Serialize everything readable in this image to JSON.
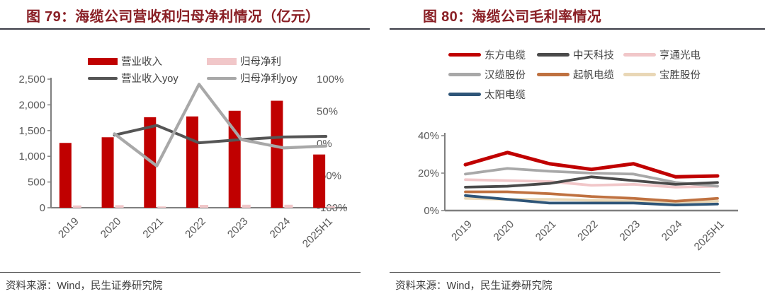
{
  "panels": [
    {
      "title": "图 79：海缆公司营收和归母净利情况（亿元）",
      "source": "资料来源：Wind，民生证券研究院"
    },
    {
      "title": "图 80：海缆公司毛利率情况",
      "source": "资料来源：Wind，民生证券研究院"
    }
  ],
  "colors": {
    "accent_red": "#c00000",
    "light_pink": "#f1c7c9",
    "dark_gray": "#4a4a4a",
    "mid_gray": "#a8a8a8",
    "orange": "#bf7140",
    "tan": "#e9d7b6",
    "steel_blue": "#2e5578",
    "title_red": "#8a2026",
    "title_rule": "#3b3c46",
    "axis_gray": "#7f7f7f",
    "tick_text": "#595959"
  },
  "chart_data": [
    {
      "type": "bar",
      "subtype": "combo-bar-line-dual-axis",
      "title": "图 79：海缆公司营收和归母净利情况（亿元）",
      "categories": [
        "2019",
        "2020",
        "2021",
        "2022",
        "2023",
        "2024",
        "2025H1"
      ],
      "left_axis": {
        "label_ticks": [
          "2,500",
          "2,000",
          "1,500",
          "1,000",
          "500",
          "0"
        ],
        "min": 0,
        "max": 2500
      },
      "right_axis": {
        "label_ticks": [
          "100%",
          "50%",
          "0%",
          "-50%",
          "-100%"
        ],
        "min": -100,
        "max": 100
      },
      "grid": false,
      "legend_position": "top-center",
      "bar_series": [
        {
          "name": "营业收入",
          "color": "#c00000",
          "values": [
            1260,
            1370,
            1760,
            1775,
            1885,
            2080,
            1035
          ]
        },
        {
          "name": "归母净利",
          "color": "#f1c7c9",
          "values": [
            45,
            50,
            25,
            55,
            58,
            58,
            28
          ]
        }
      ],
      "line_series": [
        {
          "name": "营业收入yoy",
          "color": "#555555",
          "values": [
            null,
            13,
            28,
            1,
            6,
            10,
            11
          ]
        },
        {
          "name": "归母净利yoy",
          "color": "#a8a8a8",
          "values": [
            null,
            15,
            -35,
            92,
            6,
            -7,
            -4
          ]
        }
      ]
    },
    {
      "type": "line",
      "title": "图 80：海缆公司毛利率情况",
      "categories": [
        "2019",
        "2020",
        "2021",
        "2022",
        "2023",
        "2024",
        "2025H1"
      ],
      "y_axis": {
        "label_ticks": [
          "40%",
          "20%",
          "0%"
        ],
        "min": 0,
        "max": 40,
        "unit": "%"
      },
      "grid": false,
      "legend_position": "top-center",
      "series": [
        {
          "name": "东方电缆",
          "color": "#c00000",
          "values": [
            24.5,
            31,
            25,
            22,
            25,
            18,
            18.5
          ]
        },
        {
          "name": "中天科技",
          "color": "#4a4a4a",
          "values": [
            12.5,
            13,
            14.5,
            18,
            16,
            14,
            15
          ]
        },
        {
          "name": "亨通光电",
          "color": "#f1c7c9",
          "values": [
            16.5,
            16,
            15.5,
            13.5,
            14,
            12.5,
            13
          ]
        },
        {
          "name": "汉缆股份",
          "color": "#a8a8a8",
          "values": [
            19.5,
            22.5,
            21,
            20,
            19.5,
            15,
            13
          ]
        },
        {
          "name": "起帆电缆",
          "color": "#bf7140",
          "values": [
            10,
            10,
            9,
            7.5,
            6.5,
            5,
            6.5
          ]
        },
        {
          "name": "宝胜股份",
          "color": "#e9d7b6",
          "values": [
            6.5,
            6,
            6,
            5.5,
            5,
            4.5,
            5
          ]
        },
        {
          "name": "太阳电缆",
          "color": "#2e5578",
          "values": [
            8,
            6,
            4,
            4,
            4,
            3,
            3.5
          ]
        }
      ]
    }
  ]
}
